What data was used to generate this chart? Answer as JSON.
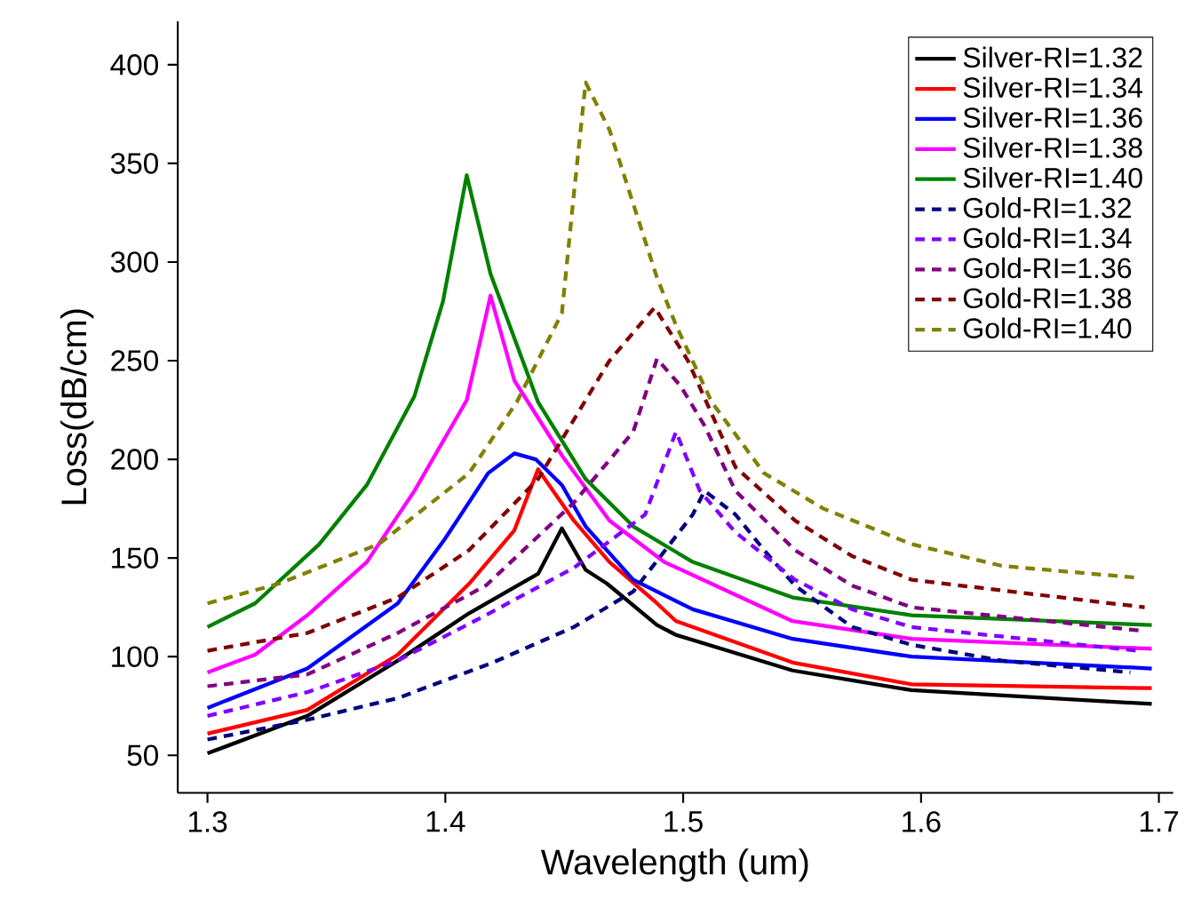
{
  "chart_data": {
    "type": "line",
    "xlabel": "Wavelength (um)",
    "ylabel": "Loss(dB/cm)",
    "xlim": [
      1.2875,
      1.706
    ],
    "ylim": [
      31,
      422
    ],
    "xticks": [
      1.3,
      1.4,
      1.5,
      1.6,
      1.7
    ],
    "yticks": [
      50,
      100,
      150,
      200,
      250,
      300,
      350,
      400
    ],
    "legend": "top right",
    "grid": false,
    "series": [
      {
        "name": "Silver-RI=1.32",
        "color": "#000000",
        "line_style": "solid",
        "x": [
          1.3,
          1.342,
          1.38,
          1.41,
          1.439,
          1.449,
          1.459,
          1.468,
          1.489,
          1.497,
          1.546,
          1.596,
          1.697
        ],
        "values": [
          51,
          70,
          98,
          122,
          142,
          165,
          144,
          137,
          116,
          111,
          93,
          83,
          76
        ]
      },
      {
        "name": "Silver-RI=1.34",
        "color": "#ff0000",
        "line_style": "solid",
        "x": [
          1.3,
          1.342,
          1.38,
          1.41,
          1.429,
          1.439,
          1.454,
          1.469,
          1.489,
          1.497,
          1.546,
          1.596,
          1.697
        ],
        "values": [
          61,
          73,
          101,
          137,
          164,
          195,
          169,
          148,
          127,
          118,
          97,
          86,
          84
        ]
      },
      {
        "name": "Silver-RI=1.36",
        "color": "#0000ff",
        "line_style": "solid",
        "x": [
          1.3,
          1.342,
          1.38,
          1.4,
          1.418,
          1.429,
          1.438,
          1.449,
          1.459,
          1.479,
          1.504,
          1.546,
          1.596,
          1.697
        ],
        "values": [
          74,
          94,
          127,
          160,
          193,
          203,
          200,
          187,
          166,
          139,
          124,
          109,
          100,
          94
        ]
      },
      {
        "name": "Silver-RI=1.38",
        "color": "#ff00ff",
        "line_style": "solid",
        "x": [
          1.3,
          1.32,
          1.342,
          1.367,
          1.387,
          1.409,
          1.419,
          1.429,
          1.449,
          1.469,
          1.492,
          1.546,
          1.596,
          1.697
        ],
        "values": [
          92,
          101,
          121,
          148,
          184,
          230,
          283,
          240,
          202,
          169,
          148,
          118,
          109,
          104
        ]
      },
      {
        "name": "Silver-RI=1.40",
        "color": "#008000",
        "line_style": "solid",
        "x": [
          1.3,
          1.32,
          1.347,
          1.367,
          1.387,
          1.399,
          1.409,
          1.419,
          1.439,
          1.459,
          1.479,
          1.504,
          1.546,
          1.596,
          1.697
        ],
        "values": [
          115,
          127,
          157,
          187,
          232,
          280,
          344,
          294,
          229,
          190,
          166,
          148,
          130,
          121,
          116
        ]
      },
      {
        "name": "Gold-RI=1.32",
        "color": "#000080",
        "line_style": "dashed",
        "x": [
          1.3,
          1.342,
          1.38,
          1.42,
          1.454,
          1.479,
          1.504,
          1.509,
          1.522,
          1.534,
          1.547,
          1.571,
          1.596,
          1.634,
          1.688
        ],
        "values": [
          58,
          68,
          79,
          97,
          115,
          133,
          172,
          184,
          172,
          154,
          136,
          115,
          106,
          98,
          92
        ]
      },
      {
        "name": "Gold-RI=1.34",
        "color": "#8000ff",
        "line_style": "dashed",
        "x": [
          1.3,
          1.342,
          1.38,
          1.417,
          1.454,
          1.484,
          1.497,
          1.507,
          1.522,
          1.547,
          1.571,
          1.596,
          1.691
        ],
        "values": [
          70,
          82,
          98,
          121,
          145,
          172,
          214,
          184,
          163,
          139,
          124,
          115,
          103
        ]
      },
      {
        "name": "Gold-RI=1.36",
        "color": "#800080",
        "line_style": "dashed",
        "x": [
          1.3,
          1.342,
          1.38,
          1.417,
          1.454,
          1.479,
          1.489,
          1.499,
          1.509,
          1.522,
          1.547,
          1.571,
          1.596,
          1.694
        ],
        "values": [
          85,
          91,
          112,
          136,
          178,
          214,
          251,
          237,
          217,
          184,
          154,
          136,
          125,
          113
        ]
      },
      {
        "name": "Gold-RI=1.38",
        "color": "#800000",
        "line_style": "dashed",
        "x": [
          1.3,
          1.342,
          1.38,
          1.41,
          1.439,
          1.469,
          1.488,
          1.502,
          1.522,
          1.547,
          1.571,
          1.596,
          1.694
        ],
        "values": [
          103,
          112,
          130,
          154,
          190,
          250,
          277,
          250,
          196,
          169,
          151,
          139,
          125
        ]
      },
      {
        "name": "Gold-RI=1.40",
        "color": "#808000",
        "line_style": "dashed",
        "x": [
          1.3,
          1.33,
          1.372,
          1.41,
          1.43,
          1.449,
          1.454,
          1.459,
          1.469,
          1.489,
          1.497,
          1.512,
          1.534,
          1.559,
          1.596,
          1.634,
          1.691
        ],
        "values": [
          127,
          137,
          157,
          193,
          229,
          274,
          334,
          391,
          367,
          292,
          268,
          229,
          193,
          175,
          157,
          146,
          140
        ]
      }
    ]
  }
}
